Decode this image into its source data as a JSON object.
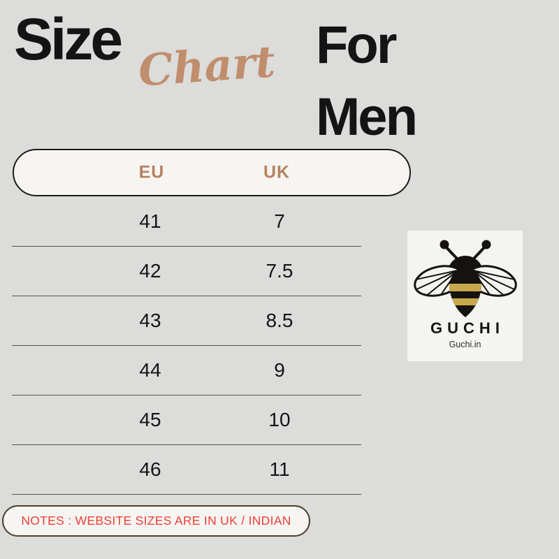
{
  "title": {
    "size": "Size",
    "chart": "Chart",
    "for_men": "For\nMen"
  },
  "colors": {
    "background": "#dcdcda",
    "ink": "#141414",
    "accent_tan": "#c08e6d",
    "header_text": "#b5835f",
    "divider": "#57524d",
    "pill_bg": "#f7f5f2",
    "card_bg": "#f4f4f2",
    "notes_red": "#ee3e38",
    "notes_border": "#503d2c",
    "bee_body": "#151310",
    "bee_stripe": "#c9a84c",
    "wing_fill": "#f4f4f2"
  },
  "chart_data": {
    "type": "table",
    "title": "Size Chart For Men",
    "columns": [
      "EU",
      "UK"
    ],
    "rows": [
      [
        "41",
        "7"
      ],
      [
        "42",
        "7.5"
      ],
      [
        "43",
        "8.5"
      ],
      [
        "44",
        "9"
      ],
      [
        "45",
        "10"
      ],
      [
        "46",
        "11"
      ]
    ]
  },
  "logo": {
    "brand": "GUCHI",
    "website": "Guchi.in"
  },
  "notes": {
    "text": "NOTES : WEBSITE SIZES ARE IN UK / INDIAN"
  }
}
